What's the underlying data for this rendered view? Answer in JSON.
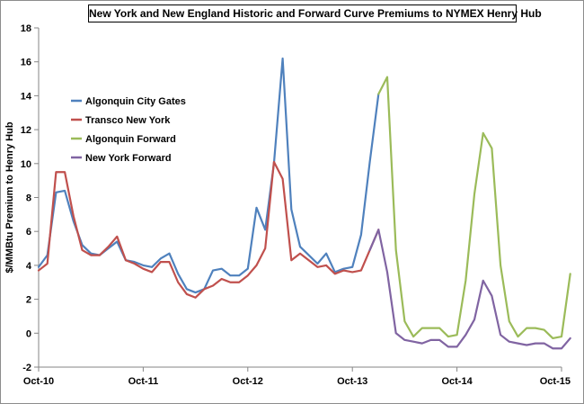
{
  "chart_data": {
    "type": "line",
    "title": "New York and New England Historic and Forward Curve Premiums to NYMEX Henry Hub",
    "ylabel": "$/MMBtu Premium to Henry Hub",
    "xlabel": "",
    "ylim": [
      -2,
      18
    ],
    "yticks": [
      -2,
      0,
      2,
      4,
      6,
      8,
      10,
      12,
      14,
      16,
      18
    ],
    "xticks": [
      "Oct-10",
      "Oct-11",
      "Oct-12",
      "Oct-13",
      "Oct-14",
      "Oct-15"
    ],
    "x_start": "Oct-10",
    "x_step": "1 month",
    "grid": false,
    "legend": "upper-left",
    "series": [
      {
        "name": "Algonquin City Gates",
        "color": "#4f81bd",
        "start_index": 0,
        "values": [
          3.9,
          4.6,
          8.3,
          8.4,
          6.6,
          5.2,
          4.7,
          4.6,
          5.0,
          5.4,
          4.3,
          4.2,
          4.0,
          3.9,
          4.4,
          4.7,
          3.5,
          2.6,
          2.4,
          2.6,
          3.7,
          3.8,
          3.4,
          3.4,
          3.8,
          7.4,
          6.1,
          10.0,
          16.2,
          7.3,
          5.1,
          4.6,
          4.1,
          4.7,
          3.6,
          3.8,
          3.9,
          5.8,
          10.1,
          14.1
        ]
      },
      {
        "name": "Transco New York",
        "color": "#c0504d",
        "start_index": 0,
        "values": [
          3.7,
          4.1,
          9.5,
          9.5,
          6.9,
          4.9,
          4.6,
          4.6,
          5.1,
          5.7,
          4.3,
          4.1,
          3.8,
          3.6,
          4.2,
          4.2,
          3.0,
          2.3,
          2.1,
          2.6,
          2.8,
          3.2,
          3.0,
          3.0,
          3.4,
          4.0,
          5.0,
          10.1,
          9.1,
          4.3,
          4.7,
          4.3,
          3.9,
          4.0,
          3.5,
          3.7,
          3.6,
          3.7,
          4.9,
          6.1
        ]
      },
      {
        "name": "Algonquin Forward",
        "color": "#9bbb59",
        "start_index": 39,
        "values": [
          14.1,
          15.1,
          4.9,
          0.7,
          -0.2,
          0.3,
          0.3,
          0.3,
          -0.2,
          -0.1,
          3.1,
          8.2,
          11.8,
          10.9,
          4.0,
          0.7,
          -0.2,
          0.3,
          0.3,
          0.2,
          -0.3,
          -0.2,
          3.5
        ]
      },
      {
        "name": "New York Forward",
        "color": "#8064a2",
        "start_index": 38,
        "values": [
          4.9,
          6.1,
          3.6,
          0.0,
          -0.4,
          -0.5,
          -0.6,
          -0.4,
          -0.4,
          -0.8,
          -0.8,
          -0.1,
          0.8,
          3.1,
          2.2,
          -0.1,
          -0.5,
          -0.6,
          -0.7,
          -0.6,
          -0.6,
          -0.9,
          -0.9,
          -0.3
        ]
      }
    ]
  }
}
